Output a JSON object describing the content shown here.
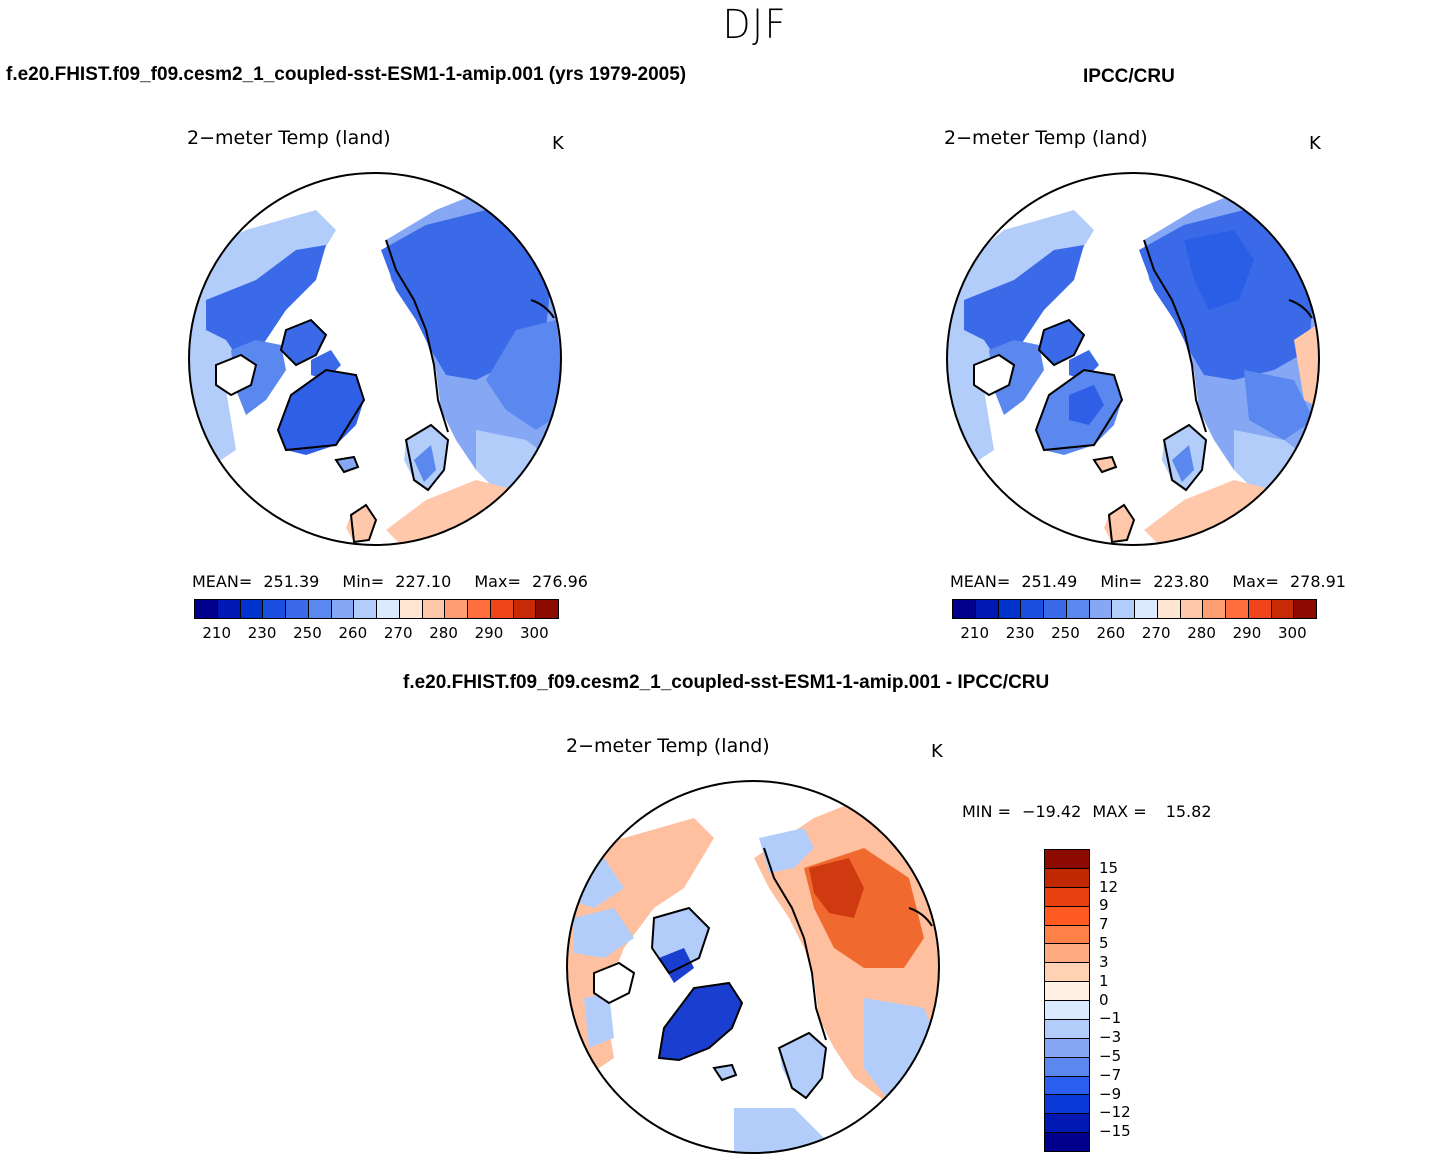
{
  "season": "DJF",
  "model_title": "f.e20.FHIST.f09_f09.cesm2_1_coupled-sst-ESM1-1-amip.001 (yrs 1979-2005)",
  "obs_title": "IPCC/CRU",
  "diff_title": "f.e20.FHIST.f09_f09.cesm2_1_coupled-sst-ESM1-1-amip.001 - IPCC/CRU",
  "panels": {
    "model": {
      "variable": "2−meter Temp (land)",
      "units": "K",
      "mean_label": "MEAN=",
      "mean": "251.39",
      "min_label": "Min=",
      "min": "227.10",
      "max_label": "Max=",
      "max": "276.96"
    },
    "obs": {
      "variable": "2−meter Temp (land)",
      "units": "K",
      "mean_label": "MEAN=",
      "mean": "251.49",
      "min_label": "Min=",
      "min": "223.80",
      "max_label": "Max=",
      "max": "278.91"
    },
    "diff": {
      "variable": "2−meter Temp (land)",
      "units": "K",
      "min_label": "MIN =",
      "min": "−19.42",
      "max_label": "MAX =",
      "max": "15.82"
    }
  },
  "abs_colorbar": {
    "colors": [
      "#00008c",
      "#0019b4",
      "#0033cc",
      "#1a4fe0",
      "#3a6ae8",
      "#5b88ee",
      "#86a8f4",
      "#b3cdfa",
      "#dceaff",
      "#ffe6d2",
      "#ffc8aa",
      "#ff9e73",
      "#ff6e3c",
      "#f0441a",
      "#c82a08",
      "#8c0a00"
    ],
    "tick_labels": [
      "210",
      "230",
      "250",
      "260",
      "270",
      "280",
      "290",
      "300"
    ]
  },
  "diff_colorbar": {
    "colors": [
      "#8c0a00",
      "#c02800",
      "#e84010",
      "#ff5a22",
      "#ff8048",
      "#ffaa80",
      "#ffd2b4",
      "#fff0e4",
      "#dceaff",
      "#b3cdfa",
      "#86a8f4",
      "#5b88ee",
      "#2a5ef0",
      "#0a3ad8",
      "#0019b4",
      "#00008c"
    ],
    "tick_labels": [
      "15",
      "12",
      "9",
      "7",
      "5",
      "3",
      "1",
      "0",
      "−1",
      "−3",
      "−5",
      "−7",
      "−9",
      "−12",
      "−15"
    ]
  },
  "map_colors": {
    "land_cold": "#3a6ae8",
    "land_mid": "#5b88ee",
    "land_light": "#86a8f4",
    "land_pale": "#b3cdfa",
    "greenland": "#2f5fe6",
    "siberia_deep": "#2a5ee6",
    "europe_warm": "#ffc8aa",
    "diff_warm": "#ffc0a0",
    "diff_hot": "#f06a30",
    "diff_red": "#d03a10",
    "diff_cool": "#b3cdfa",
    "diff_blue": "#1a3fd0"
  }
}
